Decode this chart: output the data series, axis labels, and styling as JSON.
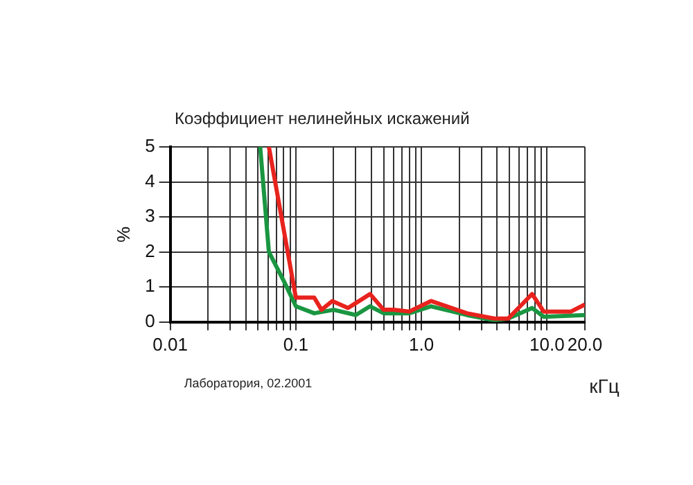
{
  "chart_data": {
    "type": "line",
    "title": "Коэффициент нелинейных искажений",
    "xlabel": "кГц",
    "ylabel": "%",
    "annotations": [
      "Лаборатория, 02.2001"
    ],
    "series": [
      {
        "color": "#e8231e",
        "x": [
          0.061,
          0.1,
          0.14,
          0.16,
          0.195,
          0.26,
          0.39,
          0.5,
          0.6,
          0.8,
          1.19,
          2.3,
          3.8,
          4.9,
          7.6,
          9.4,
          15.5,
          20
        ],
        "values": [
          5,
          0.7,
          0.7,
          0.35,
          0.6,
          0.4,
          0.8,
          0.35,
          0.35,
          0.3,
          0.6,
          0.25,
          0.1,
          0.1,
          0.8,
          0.3,
          0.3,
          0.5
        ]
      },
      {
        "color": "#1a9641",
        "x": [
          0.052,
          0.061,
          0.082,
          0.1,
          0.14,
          0.2,
          0.3,
          0.39,
          0.5,
          0.8,
          1.19,
          2.3,
          3.8,
          4.9,
          7.6,
          9.4,
          20
        ],
        "values": [
          5,
          2.0,
          1.1,
          0.45,
          0.25,
          0.35,
          0.2,
          0.45,
          0.25,
          0.25,
          0.45,
          0.2,
          0.05,
          0.1,
          0.4,
          0.15,
          0.2
        ]
      }
    ],
    "xlim": [
      0.01,
      20
    ],
    "ylim": [
      0,
      5
    ],
    "log": "x",
    "grid": true,
    "marker": "none",
    "line_style": "solid",
    "xticks": [
      {
        "value": 0.01,
        "label": "0.01"
      },
      {
        "value": 0.02,
        "label": null
      },
      {
        "value": 0.03,
        "label": null
      },
      {
        "value": 0.04,
        "label": null
      },
      {
        "value": 0.05,
        "label": null
      },
      {
        "value": 0.06,
        "label": null
      },
      {
        "value": 0.07,
        "label": null
      },
      {
        "value": 0.08,
        "label": null
      },
      {
        "value": 0.09,
        "label": null
      },
      {
        "value": 0.1,
        "label": "0.1"
      },
      {
        "value": 0.2,
        "label": null
      },
      {
        "value": 0.3,
        "label": null
      },
      {
        "value": 0.4,
        "label": null
      },
      {
        "value": 0.5,
        "label": null
      },
      {
        "value": 0.6,
        "label": null
      },
      {
        "value": 0.7,
        "label": null
      },
      {
        "value": 0.8,
        "label": null
      },
      {
        "value": 0.9,
        "label": null
      },
      {
        "value": 1,
        "label": "1.0"
      },
      {
        "value": 2,
        "label": null
      },
      {
        "value": 3,
        "label": null
      },
      {
        "value": 4,
        "label": null
      },
      {
        "value": 5,
        "label": null
      },
      {
        "value": 6,
        "label": null
      },
      {
        "value": 7,
        "label": null
      },
      {
        "value": 8,
        "label": null
      },
      {
        "value": 9,
        "label": null
      },
      {
        "value": 10,
        "label": "10.0"
      },
      {
        "value": 20,
        "label": "20.0"
      }
    ],
    "yticks": [
      0,
      1,
      2,
      3,
      4,
      5
    ]
  }
}
